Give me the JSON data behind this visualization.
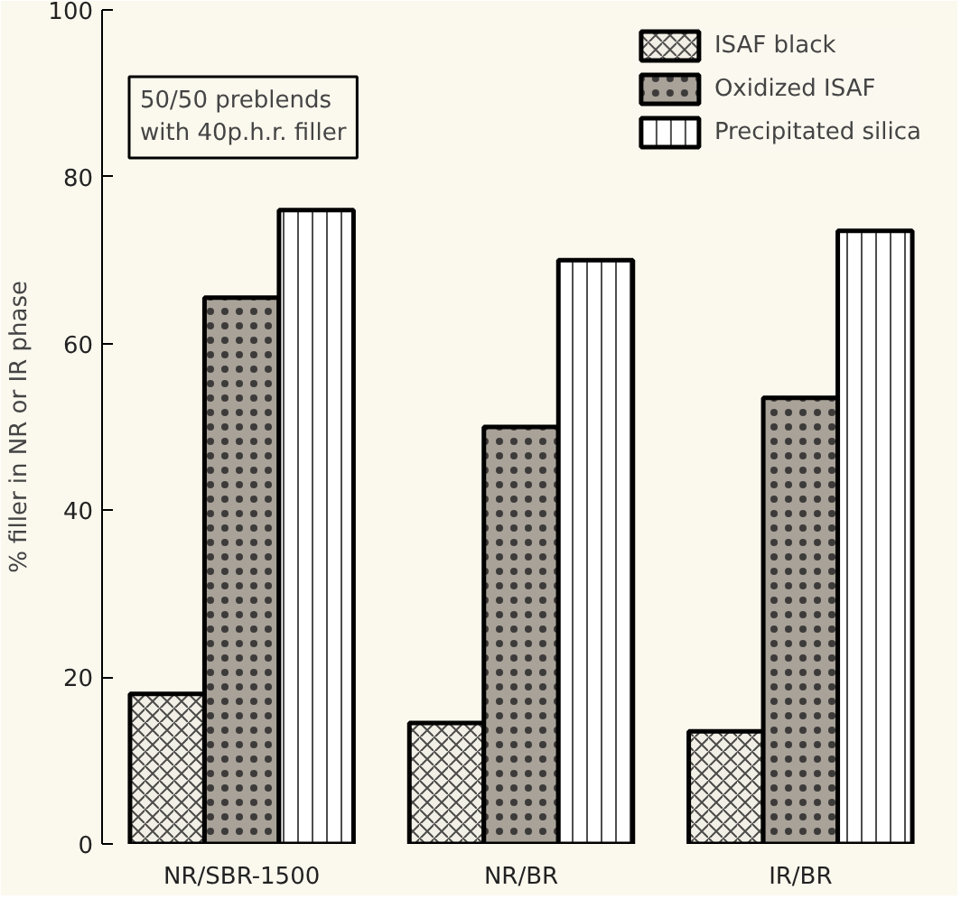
{
  "chart_data": {
    "type": "bar",
    "ylabel": "% filler in NR or IR phase",
    "categories": [
      "NR/SBR-1500",
      "NR/BR",
      "IR/BR"
    ],
    "series": [
      {
        "name": "ISAF black",
        "color": "#f2efe6",
        "values": [
          18,
          14.5,
          13.5
        ]
      },
      {
        "name": "Oxidized ISAF",
        "color": "#a8a299",
        "values": [
          65.5,
          50,
          53.5
        ]
      },
      {
        "name": "Precipitated silica",
        "color": "#ffffff",
        "values": [
          76,
          70,
          73.5
        ]
      }
    ],
    "ylim": [
      0,
      100
    ],
    "yticks": [
      0,
      20,
      40,
      60,
      80,
      100
    ],
    "grid": false,
    "legend": "top right",
    "annotations": [
      "50/50 preblends\nwith 40p.h.r. filler"
    ]
  }
}
